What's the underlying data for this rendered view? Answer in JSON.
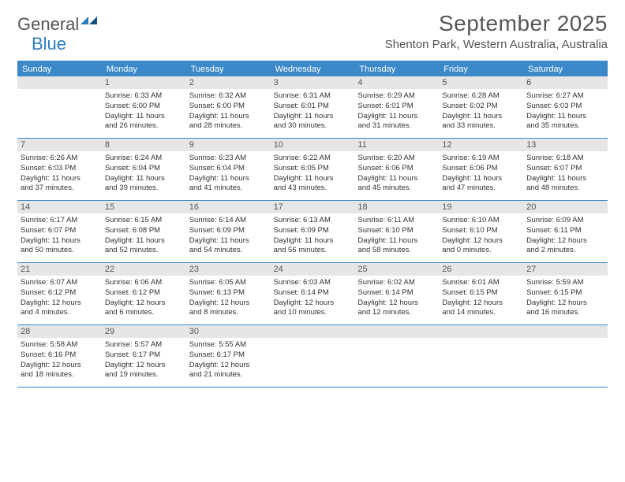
{
  "logo": {
    "general": "General",
    "blue": "Blue"
  },
  "title": "September 2025",
  "location": "Shenton Park, Western Australia, Australia",
  "header_bg": "#3b89c9",
  "daynum_bg": "#e6e6e6",
  "text_color": "#333333",
  "day_names": [
    "Sunday",
    "Monday",
    "Tuesday",
    "Wednesday",
    "Thursday",
    "Friday",
    "Saturday"
  ],
  "weeks": [
    [
      {
        "n": "",
        "lines": []
      },
      {
        "n": "1",
        "lines": [
          "Sunrise: 6:33 AM",
          "Sunset: 6:00 PM",
          "Daylight: 11 hours",
          "and 26 minutes."
        ]
      },
      {
        "n": "2",
        "lines": [
          "Sunrise: 6:32 AM",
          "Sunset: 6:00 PM",
          "Daylight: 11 hours",
          "and 28 minutes."
        ]
      },
      {
        "n": "3",
        "lines": [
          "Sunrise: 6:31 AM",
          "Sunset: 6:01 PM",
          "Daylight: 11 hours",
          "and 30 minutes."
        ]
      },
      {
        "n": "4",
        "lines": [
          "Sunrise: 6:29 AM",
          "Sunset: 6:01 PM",
          "Daylight: 11 hours",
          "and 31 minutes."
        ]
      },
      {
        "n": "5",
        "lines": [
          "Sunrise: 6:28 AM",
          "Sunset: 6:02 PM",
          "Daylight: 11 hours",
          "and 33 minutes."
        ]
      },
      {
        "n": "6",
        "lines": [
          "Sunrise: 6:27 AM",
          "Sunset: 6:03 PM",
          "Daylight: 11 hours",
          "and 35 minutes."
        ]
      }
    ],
    [
      {
        "n": "7",
        "lines": [
          "Sunrise: 6:26 AM",
          "Sunset: 6:03 PM",
          "Daylight: 11 hours",
          "and 37 minutes."
        ]
      },
      {
        "n": "8",
        "lines": [
          "Sunrise: 6:24 AM",
          "Sunset: 6:04 PM",
          "Daylight: 11 hours",
          "and 39 minutes."
        ]
      },
      {
        "n": "9",
        "lines": [
          "Sunrise: 6:23 AM",
          "Sunset: 6:04 PM",
          "Daylight: 11 hours",
          "and 41 minutes."
        ]
      },
      {
        "n": "10",
        "lines": [
          "Sunrise: 6:22 AM",
          "Sunset: 6:05 PM",
          "Daylight: 11 hours",
          "and 43 minutes."
        ]
      },
      {
        "n": "11",
        "lines": [
          "Sunrise: 6:20 AM",
          "Sunset: 6:06 PM",
          "Daylight: 11 hours",
          "and 45 minutes."
        ]
      },
      {
        "n": "12",
        "lines": [
          "Sunrise: 6:19 AM",
          "Sunset: 6:06 PM",
          "Daylight: 11 hours",
          "and 47 minutes."
        ]
      },
      {
        "n": "13",
        "lines": [
          "Sunrise: 6:18 AM",
          "Sunset: 6:07 PM",
          "Daylight: 11 hours",
          "and 48 minutes."
        ]
      }
    ],
    [
      {
        "n": "14",
        "lines": [
          "Sunrise: 6:17 AM",
          "Sunset: 6:07 PM",
          "Daylight: 11 hours",
          "and 50 minutes."
        ]
      },
      {
        "n": "15",
        "lines": [
          "Sunrise: 6:15 AM",
          "Sunset: 6:08 PM",
          "Daylight: 11 hours",
          "and 52 minutes."
        ]
      },
      {
        "n": "16",
        "lines": [
          "Sunrise: 6:14 AM",
          "Sunset: 6:09 PM",
          "Daylight: 11 hours",
          "and 54 minutes."
        ]
      },
      {
        "n": "17",
        "lines": [
          "Sunrise: 6:13 AM",
          "Sunset: 6:09 PM",
          "Daylight: 11 hours",
          "and 56 minutes."
        ]
      },
      {
        "n": "18",
        "lines": [
          "Sunrise: 6:11 AM",
          "Sunset: 6:10 PM",
          "Daylight: 11 hours",
          "and 58 minutes."
        ]
      },
      {
        "n": "19",
        "lines": [
          "Sunrise: 6:10 AM",
          "Sunset: 6:10 PM",
          "Daylight: 12 hours",
          "and 0 minutes."
        ]
      },
      {
        "n": "20",
        "lines": [
          "Sunrise: 6:09 AM",
          "Sunset: 6:11 PM",
          "Daylight: 12 hours",
          "and 2 minutes."
        ]
      }
    ],
    [
      {
        "n": "21",
        "lines": [
          "Sunrise: 6:07 AM",
          "Sunset: 6:12 PM",
          "Daylight: 12 hours",
          "and 4 minutes."
        ]
      },
      {
        "n": "22",
        "lines": [
          "Sunrise: 6:06 AM",
          "Sunset: 6:12 PM",
          "Daylight: 12 hours",
          "and 6 minutes."
        ]
      },
      {
        "n": "23",
        "lines": [
          "Sunrise: 6:05 AM",
          "Sunset: 6:13 PM",
          "Daylight: 12 hours",
          "and 8 minutes."
        ]
      },
      {
        "n": "24",
        "lines": [
          "Sunrise: 6:03 AM",
          "Sunset: 6:14 PM",
          "Daylight: 12 hours",
          "and 10 minutes."
        ]
      },
      {
        "n": "25",
        "lines": [
          "Sunrise: 6:02 AM",
          "Sunset: 6:14 PM",
          "Daylight: 12 hours",
          "and 12 minutes."
        ]
      },
      {
        "n": "26",
        "lines": [
          "Sunrise: 6:01 AM",
          "Sunset: 6:15 PM",
          "Daylight: 12 hours",
          "and 14 minutes."
        ]
      },
      {
        "n": "27",
        "lines": [
          "Sunrise: 5:59 AM",
          "Sunset: 6:15 PM",
          "Daylight: 12 hours",
          "and 16 minutes."
        ]
      }
    ],
    [
      {
        "n": "28",
        "lines": [
          "Sunrise: 5:58 AM",
          "Sunset: 6:16 PM",
          "Daylight: 12 hours",
          "and 18 minutes."
        ]
      },
      {
        "n": "29",
        "lines": [
          "Sunrise: 5:57 AM",
          "Sunset: 6:17 PM",
          "Daylight: 12 hours",
          "and 19 minutes."
        ]
      },
      {
        "n": "30",
        "lines": [
          "Sunrise: 5:55 AM",
          "Sunset: 6:17 PM",
          "Daylight: 12 hours",
          "and 21 minutes."
        ]
      },
      {
        "n": "",
        "lines": []
      },
      {
        "n": "",
        "lines": []
      },
      {
        "n": "",
        "lines": []
      },
      {
        "n": "",
        "lines": []
      }
    ]
  ]
}
